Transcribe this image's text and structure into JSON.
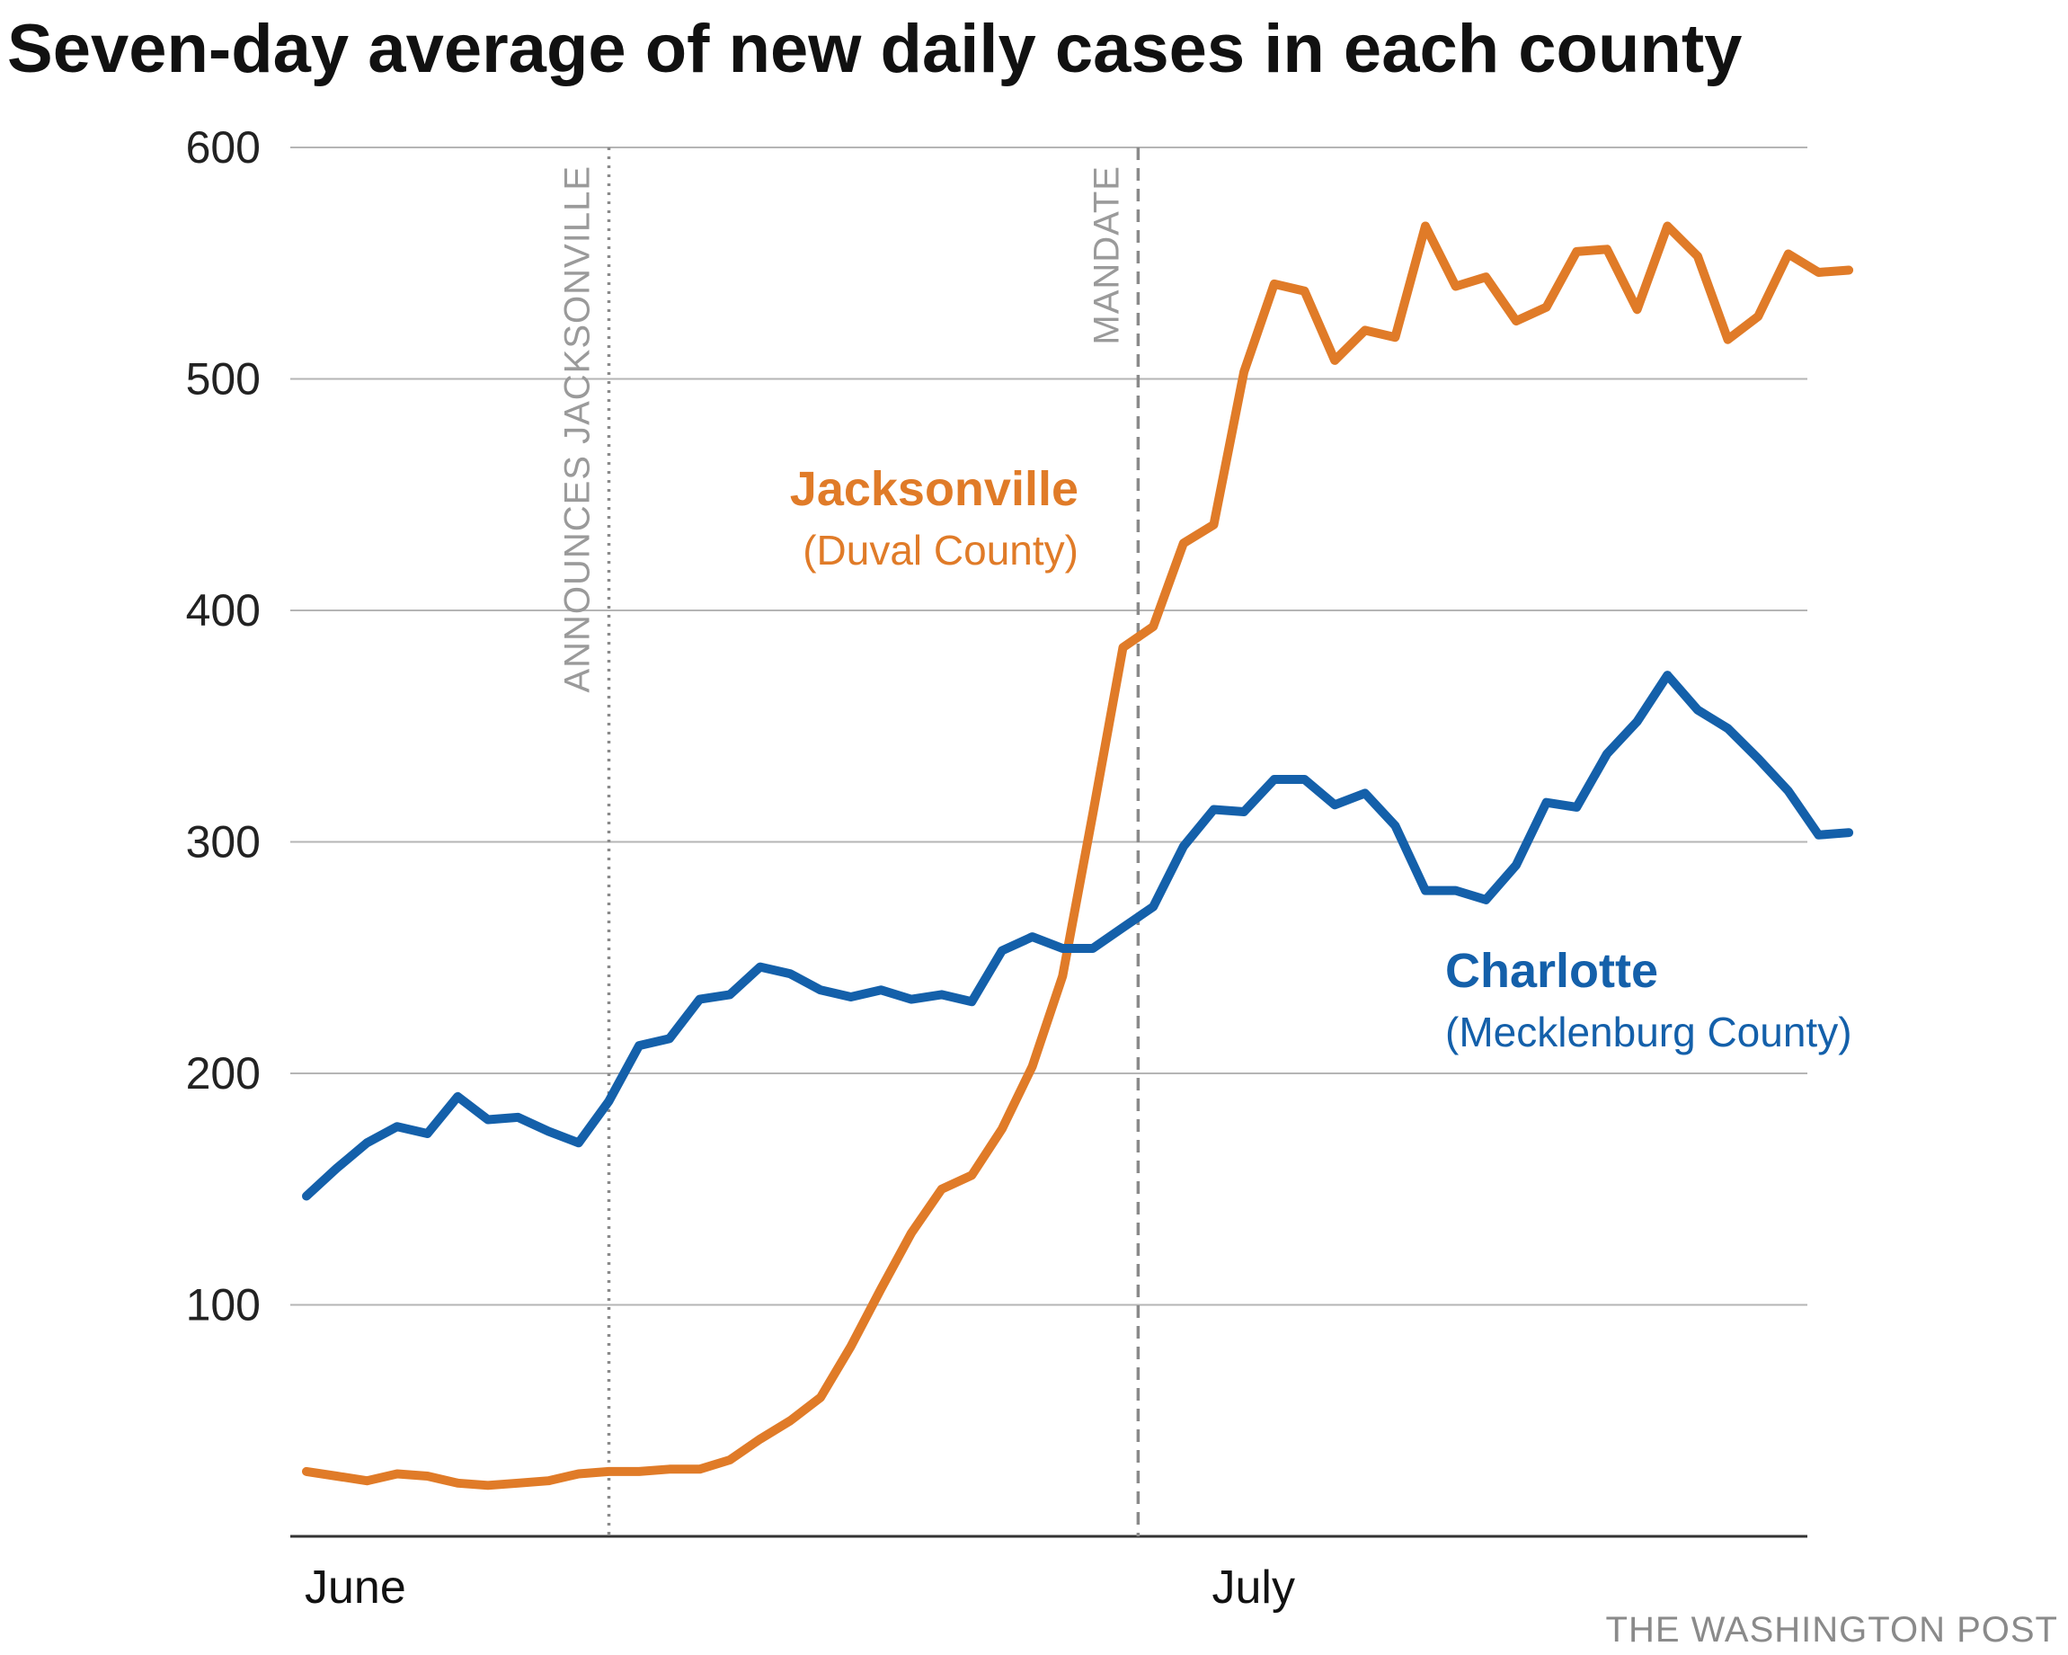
{
  "chart_data": {
    "type": "line",
    "title": "Seven-day average of new daily cases in each county",
    "credit": "THE WASHINGTON POST",
    "ylim": [
      0,
      600
    ],
    "yticks": [
      100,
      200,
      300,
      400,
      500,
      600
    ],
    "grid": true,
    "x_tick_labels": [
      {
        "day": 1,
        "label": "June"
      },
      {
        "day": 31,
        "label": "July"
      }
    ],
    "events": [
      {
        "day": 11,
        "label": "ANNOUNCES JACKSONVILLE",
        "style": "dotted"
      },
      {
        "day": 28.5,
        "label": "MANDATE",
        "style": "dashed"
      }
    ],
    "x": [
      1,
      2,
      3,
      4,
      5,
      6,
      7,
      8,
      9,
      10,
      11,
      12,
      13,
      14,
      15,
      16,
      17,
      18,
      19,
      20,
      21,
      22,
      23,
      24,
      25,
      26,
      27,
      28,
      29,
      30,
      31,
      32,
      33,
      34,
      35,
      36,
      37,
      38,
      39,
      40,
      41,
      42,
      43,
      44,
      45,
      46,
      47,
      48,
      49,
      50,
      51,
      52
    ],
    "series": [
      {
        "name": "Jacksonville",
        "sublabel": "(Duval County)",
        "color": "#e07b28",
        "values": [
          28,
          26,
          24,
          27,
          26,
          23,
          22,
          23,
          24,
          27,
          28,
          28,
          29,
          29,
          33,
          42,
          50,
          60,
          82,
          107,
          131,
          150,
          156,
          176,
          203,
          242,
          312,
          384,
          393,
          429,
          437,
          503,
          541,
          538,
          508,
          521,
          518,
          566,
          540,
          544,
          525,
          531,
          555,
          556,
          530,
          566,
          553,
          517,
          527,
          554,
          546,
          547
        ]
      },
      {
        "name": "Charlotte",
        "sublabel": "(Mecklenburg County)",
        "color": "#1460aa",
        "values": [
          147,
          159,
          170,
          177,
          174,
          190,
          180,
          181,
          175,
          170,
          188,
          212,
          215,
          232,
          234,
          246,
          243,
          236,
          233,
          236,
          232,
          234,
          231,
          253,
          259,
          254,
          254,
          263,
          272,
          298,
          314,
          313,
          327,
          327,
          316,
          321,
          307,
          279,
          279,
          275,
          290,
          317,
          315,
          338,
          352,
          372,
          357,
          349,
          336,
          322,
          303,
          304
        ]
      }
    ]
  }
}
